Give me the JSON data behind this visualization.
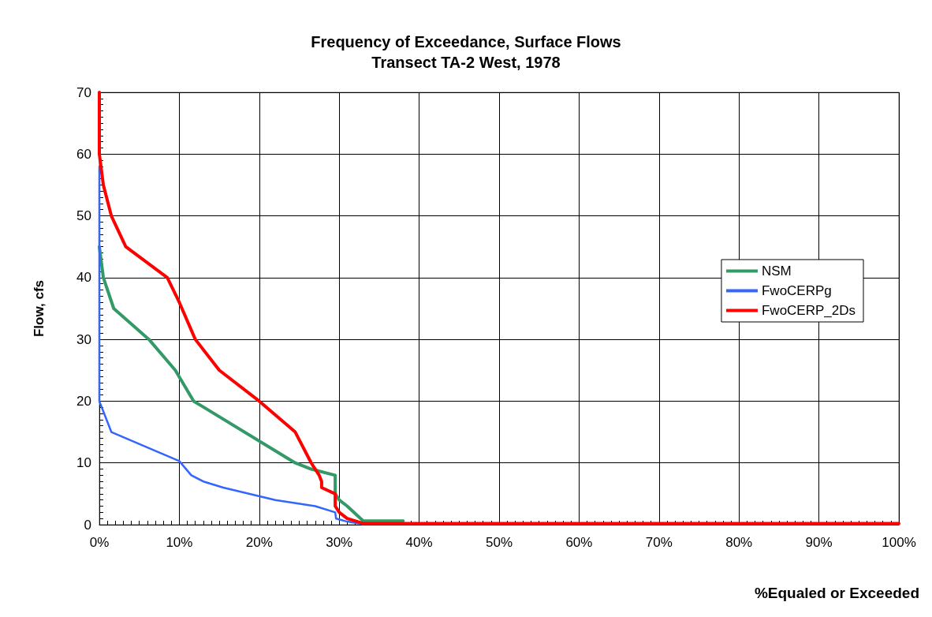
{
  "chart_data": {
    "type": "line",
    "title": "Frequency of Exceedance, Surface Flows",
    "subtitle": "Transect TA-2 West, 1978",
    "xlabel": "%Equaled or Exceeded",
    "ylabel": "Flow, cfs",
    "xlim": [
      0,
      100
    ],
    "xticks": [
      {
        "value": 0,
        "label": "0%"
      },
      {
        "value": 10,
        "label": "10%"
      },
      {
        "value": 20,
        "label": "20%"
      },
      {
        "value": 30,
        "label": "30%"
      },
      {
        "value": 40,
        "label": "40%"
      },
      {
        "value": 50,
        "label": "50%"
      },
      {
        "value": 60,
        "label": "60%"
      },
      {
        "value": 70,
        "label": "70%"
      },
      {
        "value": 80,
        "label": "80%"
      },
      {
        "value": 90,
        "label": "90%"
      },
      {
        "value": 100,
        "label": "100%"
      }
    ],
    "ylim": [
      0,
      70
    ],
    "yticks": [
      0,
      10,
      20,
      30,
      40,
      50,
      60,
      70
    ],
    "grid": true,
    "legend": "right",
    "marker": "none",
    "line_style": "solid",
    "series": [
      {
        "name": "NSM",
        "color": "#339966",
        "x": [
          0,
          0.5,
          1.8,
          6.2,
          9.5,
          11.8,
          24.5,
          26.5,
          29.5,
          29.5,
          30,
          31,
          33,
          38
        ],
        "values": [
          45,
          40,
          35,
          30,
          25,
          20,
          10,
          9,
          8,
          5,
          4,
          3,
          0.6,
          0.6
        ]
      },
      {
        "name": "FwoCERPg",
        "color": "#3366ff",
        "x": [
          0,
          0,
          1.5,
          10,
          11.5,
          13,
          15.5,
          22,
          27,
          29.5,
          29.6,
          31,
          33
        ],
        "values": [
          58,
          20,
          15,
          10.3,
          8,
          7,
          6,
          4,
          3,
          2,
          1,
          0.5,
          0.1
        ]
      },
      {
        "name": "FwoCERP_2Ds",
        "color": "#ff0000",
        "x": [
          0,
          0,
          0.5,
          1.5,
          3.3,
          8.5,
          10,
          12,
          15,
          20,
          24.5,
          26.5,
          27.5,
          27.8,
          27.8,
          29.5,
          29.5,
          30,
          31,
          33,
          100
        ],
        "values": [
          70,
          60,
          55,
          50,
          45,
          40,
          36,
          30,
          25,
          20,
          15,
          10,
          8,
          7,
          6,
          5,
          3,
          2,
          1,
          0.2,
          0.2
        ]
      }
    ]
  }
}
